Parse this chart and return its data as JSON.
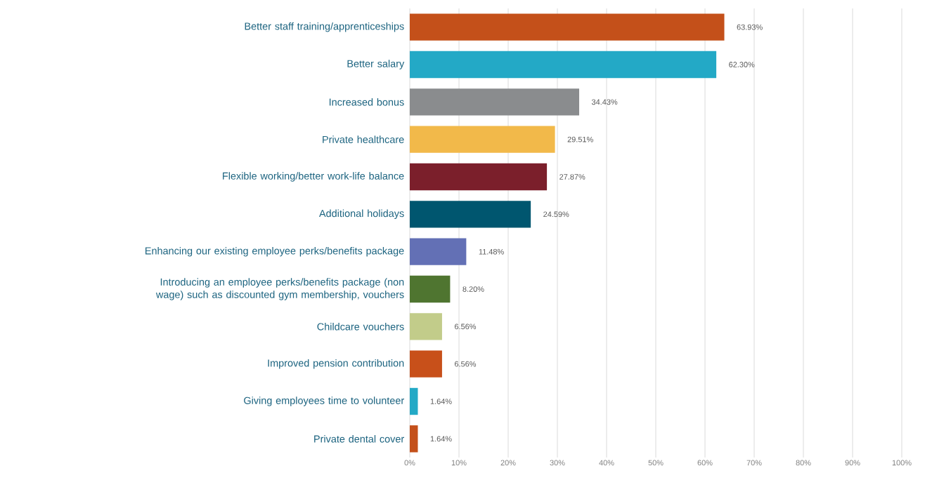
{
  "chart_data": {
    "type": "bar",
    "orientation": "horizontal",
    "categories": [
      "Better staff training/apprenticeships",
      "Better salary",
      "Increased bonus",
      "Private healthcare",
      "Flexible working/better work-life balance",
      "Additional holidays",
      "Enhancing our existing employee perks/benefits package",
      "Introducing an employee perks/benefits package (non wage) such as discounted gym membership, vouchers",
      "Childcare vouchers",
      "Improved pension contribution",
      "Giving employees time to volunteer",
      "Private dental cover"
    ],
    "values": [
      63.93,
      62.3,
      34.43,
      29.51,
      27.87,
      24.59,
      11.48,
      8.2,
      6.56,
      6.56,
      1.64,
      1.64
    ],
    "value_labels": [
      "63.93%",
      "62.30%",
      "34.43%",
      "29.51%",
      "27.87%",
      "24.59%",
      "11.48%",
      "8.20%",
      "6.56%",
      "6.56%",
      "1.64%",
      "1.64%"
    ],
    "colors": [
      "#c4501a",
      "#23a9c6",
      "#8a8c8e",
      "#f2b94a",
      "#7b1f2b",
      "#00566f",
      "#6370b5",
      "#4f7530",
      "#c2cc8a",
      "#c8501a",
      "#23a9c6",
      "#c4501a"
    ],
    "xlim": [
      0,
      100
    ],
    "xticks": [
      {
        "value": 0,
        "label": "0%"
      },
      {
        "value": 10,
        "label": "10%"
      },
      {
        "value": 20,
        "label": "20%"
      },
      {
        "value": 30,
        "label": "30%"
      },
      {
        "value": 40,
        "label": "40%"
      },
      {
        "value": 50,
        "label": "50%"
      },
      {
        "value": 60,
        "label": "60%"
      },
      {
        "value": 70,
        "label": "70%"
      },
      {
        "value": 80,
        "label": "80%"
      },
      {
        "value": 90,
        "label": "90%"
      },
      {
        "value": 100,
        "label": "100%"
      }
    ],
    "grid": "x"
  }
}
